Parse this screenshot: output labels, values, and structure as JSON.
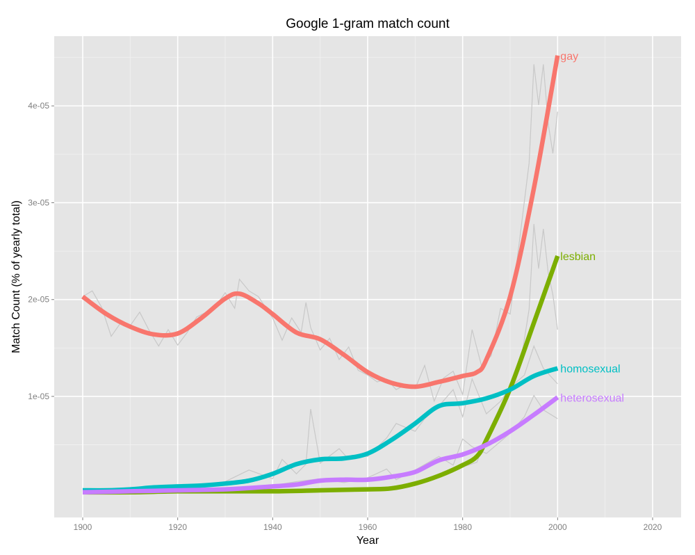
{
  "chart_data": {
    "type": "line",
    "title": "Google 1-gram match count",
    "xlabel": "Year",
    "ylabel": "Match Count (% of yearly total)",
    "xlim": [
      1894,
      2026
    ],
    "ylim": [
      -2.5e-06,
      4.72e-05
    ],
    "x_ticks": [
      1900,
      1920,
      1940,
      1960,
      1980,
      2000,
      2020
    ],
    "x_tick_labels": [
      "1900",
      "1920",
      "1940",
      "1960",
      "1980",
      "2000",
      "2020"
    ],
    "y_ticks": [
      1e-05,
      2e-05,
      3e-05,
      4e-05
    ],
    "y_tick_labels": [
      "1e-05",
      "2e-05",
      "3e-05",
      "4e-05"
    ],
    "grid": true,
    "legend": "direct labels at line ends",
    "colors": {
      "panel": "#e5e5e5",
      "grid_major": "#ffffff",
      "grid_minor": "#f2f2f2",
      "raw": "#c8c8c8"
    },
    "series": [
      {
        "name": "gay",
        "color": "#f8766d",
        "x": [
          1900,
          1905,
          1910,
          1915,
          1920,
          1925,
          1930,
          1933,
          1937,
          1940,
          1945,
          1950,
          1955,
          1960,
          1965,
          1970,
          1975,
          1980,
          1983,
          1985,
          1990,
          1995,
          2000
        ],
        "y": [
          2.03e-05,
          1.85e-05,
          1.72e-05,
          1.64e-05,
          1.65e-05,
          1.81e-05,
          2.01e-05,
          2.06e-05,
          1.96e-05,
          1.85e-05,
          1.66e-05,
          1.59e-05,
          1.43e-05,
          1.25e-05,
          1.14e-05,
          1.1e-05,
          1.15e-05,
          1.21e-05,
          1.25e-05,
          1.38e-05,
          2.03e-05,
          3.15e-05,
          4.52e-05
        ]
      },
      {
        "name": "lesbian",
        "color": "#7cae00",
        "x": [
          1900,
          1910,
          1920,
          1930,
          1940,
          1950,
          1960,
          1965,
          1970,
          1975,
          1980,
          1983,
          1985,
          1990,
          1995,
          2000
        ],
        "y": [
          1e-07,
          1e-07,
          2e-07,
          2e-07,
          2e-07,
          3e-07,
          4e-07,
          5e-07,
          1e-06,
          1.8e-06,
          2.9e-06,
          3.8e-06,
          5.5e-06,
          1.08e-05,
          1.76e-05,
          2.45e-05
        ]
      },
      {
        "name": "homosexual",
        "color": "#00bfc4",
        "x": [
          1900,
          1905,
          1910,
          1915,
          1920,
          1925,
          1930,
          1935,
          1940,
          1945,
          1950,
          1955,
          1960,
          1965,
          1970,
          1975,
          1980,
          1985,
          1990,
          1995,
          2000
        ],
        "y": [
          3e-07,
          3e-07,
          4e-07,
          6e-07,
          7e-07,
          8e-07,
          1e-06,
          1.3e-06,
          2e-06,
          3e-06,
          3.5e-06,
          3.6e-06,
          4.1e-06,
          5.5e-06,
          7.2e-06,
          9e-06,
          9.3e-06,
          9.8e-06,
          1.07e-05,
          1.21e-05,
          1.29e-05
        ]
      },
      {
        "name": "heterosexual",
        "color": "#c77cff",
        "x": [
          1900,
          1910,
          1920,
          1930,
          1940,
          1945,
          1950,
          1955,
          1960,
          1965,
          1970,
          1975,
          1980,
          1985,
          1990,
          1995,
          2000
        ],
        "y": [
          1e-07,
          2e-07,
          3e-07,
          4e-07,
          7e-07,
          9e-07,
          1.3e-06,
          1.4e-06,
          1.4e-06,
          1.7e-06,
          2.2e-06,
          3.4e-06,
          4e-06,
          5e-06,
          6.4e-06,
          8.1e-06,
          9.9e-06
        ]
      }
    ],
    "raw_series": [
      {
        "x": [
          1900,
          1902,
          1904,
          1906,
          1908,
          1910,
          1912,
          1914,
          1916,
          1918,
          1920,
          1922,
          1924,
          1926,
          1928,
          1930,
          1932,
          1933,
          1935,
          1937,
          1940,
          1942,
          1944,
          1946,
          1947,
          1948,
          1950,
          1952,
          1954,
          1956,
          1958,
          1960,
          1962,
          1964,
          1966,
          1968,
          1970,
          1972,
          1974,
          1976,
          1978,
          1980,
          1982,
          1984,
          1986,
          1988,
          1990,
          1992,
          1994,
          1995,
          1996,
          1997,
          1998,
          1999,
          2000
        ],
        "y": [
          2.03e-05,
          2.09e-05,
          1.92e-05,
          1.62e-05,
          1.76e-05,
          1.73e-05,
          1.87e-05,
          1.68e-05,
          1.52e-05,
          1.69e-05,
          1.53e-05,
          1.66e-05,
          1.82e-05,
          1.87e-05,
          1.93e-05,
          2.07e-05,
          1.91e-05,
          2.21e-05,
          2.09e-05,
          2.03e-05,
          1.81e-05,
          1.58e-05,
          1.81e-05,
          1.66e-05,
          1.97e-05,
          1.71e-05,
          1.48e-05,
          1.6e-05,
          1.38e-05,
          1.51e-05,
          1.27e-05,
          1.22e-05,
          1.15e-05,
          1.18e-05,
          1.07e-05,
          1.12e-05,
          1.08e-05,
          1.32e-05,
          9.5e-06,
          1.19e-05,
          1.26e-05,
          1.02e-05,
          1.69e-05,
          1.31e-05,
          1.42e-05,
          1.91e-05,
          1.85e-05,
          2.62e-05,
          3.41e-05,
          4.43e-05,
          4.01e-05,
          4.43e-05,
          3.82e-05,
          3.51e-05,
          3.94e-05
        ]
      },
      {
        "x": [
          1900,
          1920,
          1940,
          1960,
          1970,
          1975,
          1980,
          1983,
          1986,
          1990,
          1992,
          1994,
          1995,
          1996,
          1997,
          1998,
          1999,
          2000
        ],
        "y": [
          1e-07,
          2e-07,
          2e-07,
          4e-07,
          1e-06,
          2e-06,
          2.7e-06,
          3.2e-06,
          7e-06,
          1.1e-05,
          1.28e-05,
          1.9e-05,
          2.78e-05,
          2.32e-05,
          2.73e-05,
          2.28e-05,
          2.05e-05,
          1.69e-05
        ]
      },
      {
        "x": [
          1900,
          1910,
          1920,
          1925,
          1930,
          1935,
          1940,
          1942,
          1945,
          1947,
          1948,
          1950,
          1954,
          1956,
          1958,
          1960,
          1964,
          1966,
          1970,
          1972,
          1975,
          1978,
          1980,
          1982,
          1985,
          1988,
          1990,
          1993,
          1995,
          1997,
          2000
        ],
        "y": [
          3e-07,
          4e-07,
          8e-07,
          9e-07,
          1.2e-06,
          2.4e-06,
          1.5e-06,
          3.5e-06,
          2e-06,
          3e-06,
          8.7e-06,
          3.1e-06,
          4.6e-06,
          3.5e-06,
          3.8e-06,
          3.8e-06,
          5.7e-06,
          7.2e-06,
          6.4e-06,
          7.7e-06,
          9e-06,
          1.07e-05,
          7.9e-06,
          1.18e-05,
          8.2e-06,
          9.5e-06,
          1.09e-05,
          1.22e-05,
          1.52e-05,
          1.29e-05,
          1.13e-05
        ]
      },
      {
        "x": [
          1900,
          1920,
          1940,
          1945,
          1950,
          1955,
          1960,
          1964,
          1966,
          1970,
          1975,
          1978,
          1980,
          1982,
          1985,
          1990,
          1993,
          1995,
          1997,
          2000
        ],
        "y": [
          1e-07,
          3e-07,
          8e-07,
          1.2e-06,
          1.5e-06,
          1.1e-06,
          1.6e-06,
          2.5e-06,
          1.4e-06,
          2.4e-06,
          3.8e-06,
          2.9e-06,
          5.6e-06,
          4.8e-06,
          4.1e-06,
          6.2e-06,
          7.9e-06,
          1.01e-05,
          8.6e-06,
          7.7e-06
        ]
      }
    ]
  }
}
